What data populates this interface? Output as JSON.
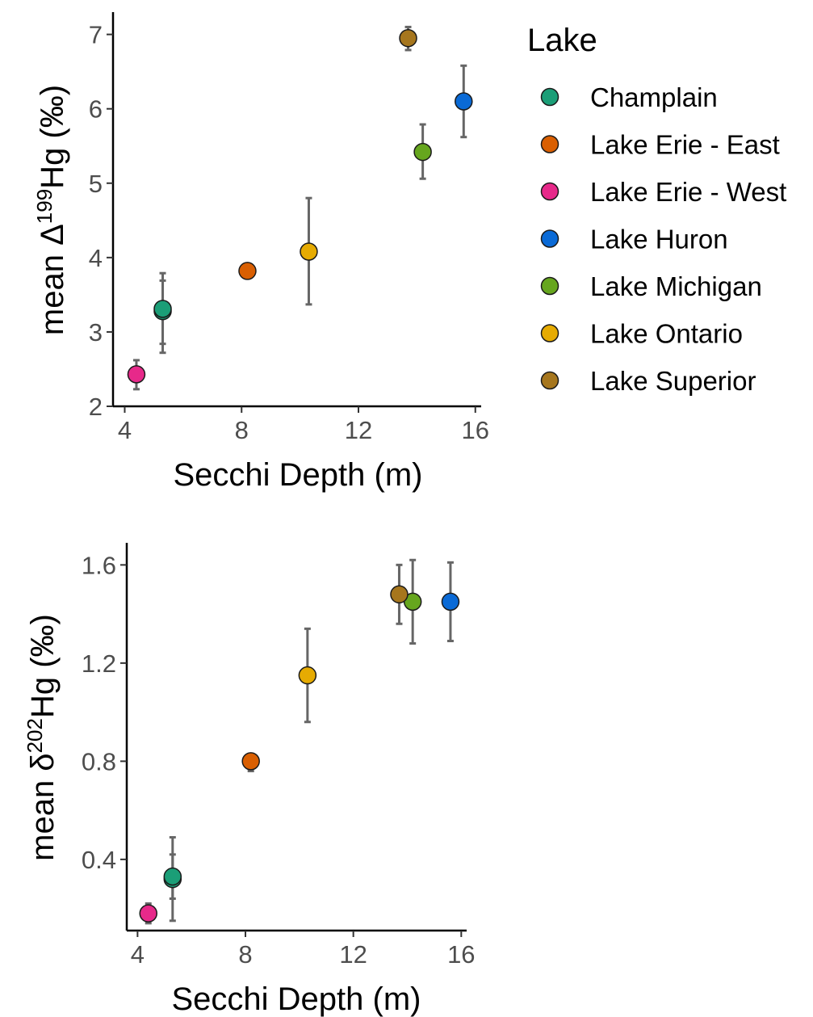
{
  "legend": {
    "title": "Lake",
    "placement": "right",
    "entries": [
      {
        "name": "Champlain",
        "color": "#1b9e77"
      },
      {
        "name": "Lake Erie - East",
        "color": "#d95f02"
      },
      {
        "name": "Lake Erie - West",
        "color": "#e7298a"
      },
      {
        "name": "Lake Huron",
        "color": "#0a6ad6"
      },
      {
        "name": "Lake Michigan",
        "color": "#66a61e"
      },
      {
        "name": "Lake Ontario",
        "color": "#e6ab02"
      },
      {
        "name": "Lake Superior",
        "color": "#a6761d"
      }
    ]
  },
  "chart_data": [
    {
      "type": "scatter",
      "title": "",
      "xlabel": "Secchi Depth (m)",
      "ylabel": {
        "prefix": "mean Δ",
        "superscript": "199",
        "suffix": "Hg (‰)"
      },
      "xlim": [
        3.6,
        16.2
      ],
      "ylim": [
        2.0,
        7.3
      ],
      "xticks": [
        "4",
        "8",
        "12",
        "16"
      ],
      "yticks": [
        "2",
        "3",
        "4",
        "5",
        "6",
        "7"
      ],
      "grid": false,
      "points": [
        {
          "lake": "Champlain",
          "x": 5.3,
          "y": 3.28,
          "ymin": 2.72,
          "ymax": 3.79
        },
        {
          "lake": "Champlain",
          "x": 5.3,
          "y": 3.31,
          "ymin": 2.84,
          "ymax": 3.69
        },
        {
          "lake": "Lake Erie - East",
          "x": 8.2,
          "y": 3.82,
          "ymin": 3.79,
          "ymax": 3.85
        },
        {
          "lake": "Lake Erie - West",
          "x": 4.4,
          "y": 2.43,
          "ymin": 2.23,
          "ymax": 2.62
        },
        {
          "lake": "Lake Huron",
          "x": 15.6,
          "y": 6.1,
          "ymin": 5.62,
          "ymax": 6.58
        },
        {
          "lake": "Lake Michigan",
          "x": 14.2,
          "y": 5.42,
          "ymin": 5.06,
          "ymax": 5.79
        },
        {
          "lake": "Lake Ontario",
          "x": 10.3,
          "y": 4.08,
          "ymin": 3.37,
          "ymax": 4.8
        },
        {
          "lake": "Lake Superior",
          "x": 13.7,
          "y": 6.95,
          "ymin": 6.79,
          "ymax": 7.1
        }
      ]
    },
    {
      "type": "scatter",
      "title": "",
      "xlabel": "Secchi Depth (m)",
      "ylabel": {
        "prefix": "mean δ",
        "superscript": "202",
        "suffix": "Hg (‰)"
      },
      "xlim": [
        3.6,
        16.2
      ],
      "ylim": [
        0.11,
        1.69
      ],
      "xticks": [
        "4",
        "8",
        "12",
        "16"
      ],
      "yticks": [
        "0.4",
        "0.8",
        "1.2",
        "1.6"
      ],
      "grid": false,
      "points": [
        {
          "lake": "Champlain",
          "x": 5.3,
          "y": 0.32,
          "ymin": 0.15,
          "ymax": 0.49
        },
        {
          "lake": "Champlain",
          "x": 5.3,
          "y": 0.33,
          "ymin": 0.24,
          "ymax": 0.42
        },
        {
          "lake": "Lake Erie - East",
          "x": 8.2,
          "y": 0.8,
          "ymin": 0.76,
          "ymax": 0.83
        },
        {
          "lake": "Lake Erie - West",
          "x": 4.4,
          "y": 0.18,
          "ymin": 0.14,
          "ymax": 0.22
        },
        {
          "lake": "Lake Huron",
          "x": 15.6,
          "y": 1.45,
          "ymin": 1.29,
          "ymax": 1.61
        },
        {
          "lake": "Lake Michigan",
          "x": 14.2,
          "y": 1.45,
          "ymin": 1.28,
          "ymax": 1.62
        },
        {
          "lake": "Lake Ontario",
          "x": 10.3,
          "y": 1.15,
          "ymin": 0.96,
          "ymax": 1.34
        },
        {
          "lake": "Lake Superior",
          "x": 13.7,
          "y": 1.48,
          "ymin": 1.36,
          "ymax": 1.6
        }
      ]
    }
  ]
}
